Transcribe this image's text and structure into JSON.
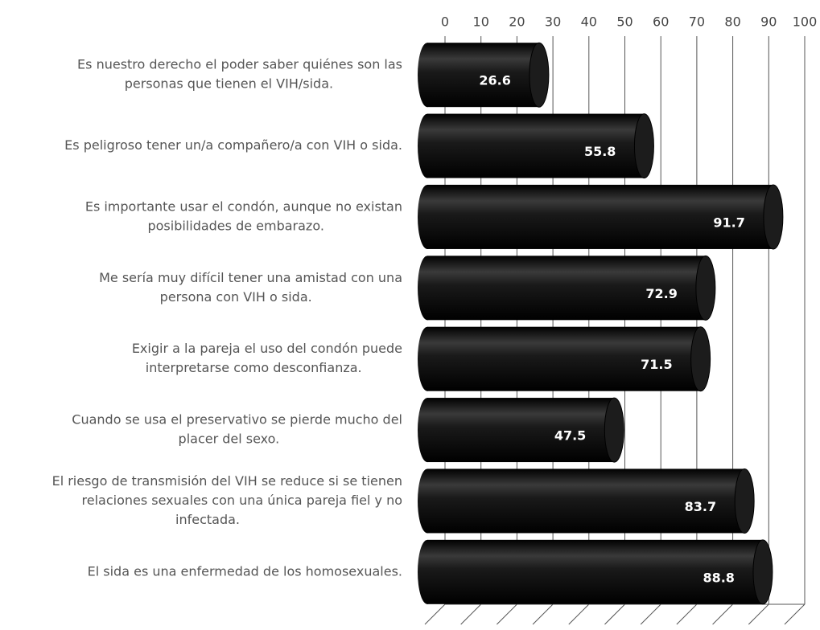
{
  "chart_data": {
    "type": "bar3d",
    "categories": [
      [
        "Es nuestro derecho el poder saber quiénes son las",
        "personas que tienen el VIH/sida."
      ],
      [
        "Es peligroso tener un/a compañero/a con VIH o sida."
      ],
      [
        "Es importante usar el condón, aunque no existan",
        "posibilidades de embarazo."
      ],
      [
        "Me sería muy difícil tener una amistad con  una",
        "persona con VIH o sida."
      ],
      [
        "Exigir a la pareja el uso del condón puede",
        "interpretarse como desconfianza."
      ],
      [
        "Cuando se usa el preservativo se pierde mucho del",
        "placer del sexo."
      ],
      [
        "El riesgo de transmisión del VIH se reduce si se tienen",
        "relaciones sexuales con una única pareja fiel y no",
        "infectada."
      ],
      [
        "El sida es una enfermedad de los homosexuales."
      ]
    ],
    "values": [
      26.6,
      55.8,
      91.7,
      72.9,
      71.5,
      47.5,
      83.7,
      88.8
    ],
    "color": "#111111",
    "xlim": [
      0,
      100
    ],
    "xticks": [
      0,
      10,
      20,
      30,
      40,
      50,
      60,
      70,
      80,
      90,
      100
    ],
    "grid": true
  }
}
